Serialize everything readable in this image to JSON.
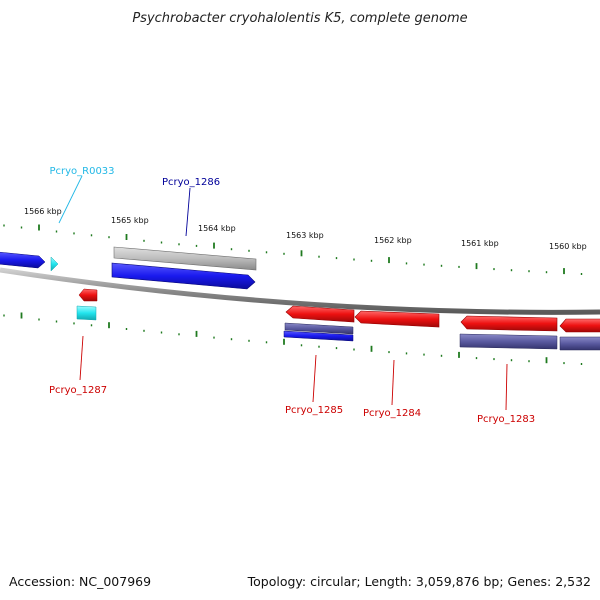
{
  "title": "Psychrobacter cryohalolentis K5, complete genome",
  "footer": {
    "accession": "Accession: NC_007969",
    "summary": "Topology: circular; Length: 3,059,876 bp; Genes: 2,532"
  },
  "colors": {
    "backbone": "#8a8a8a",
    "tick": "#1f7a1f",
    "gene_forward": "#1a1aee",
    "gene_reverse": "#ee1111",
    "rna": "#22e5ee",
    "cds_forward": "#c0c0c0",
    "cds_reverse": "#5a5aa0",
    "label_forward": "#000099",
    "label_reverse": "#cc0000",
    "label_rna": "#22b8e6"
  },
  "scale_labels": [
    "1566 kbp",
    "1565 kbp",
    "1564 kbp",
    "1563 kbp",
    "1562 kbp",
    "1561 kbp",
    "1560 kbp"
  ],
  "genes": [
    {
      "id": "Pcryo_R0033",
      "strand": "forward",
      "type": "rna"
    },
    {
      "id": "Pcryo_1286",
      "strand": "forward",
      "type": "gene"
    },
    {
      "id": "Pcryo_1287",
      "strand": "reverse",
      "type": "gene"
    },
    {
      "id": "Pcryo_1285",
      "strand": "reverse",
      "type": "gene"
    },
    {
      "id": "Pcryo_1284",
      "strand": "reverse",
      "type": "gene"
    },
    {
      "id": "Pcryo_1283",
      "strand": "reverse",
      "type": "gene"
    }
  ]
}
